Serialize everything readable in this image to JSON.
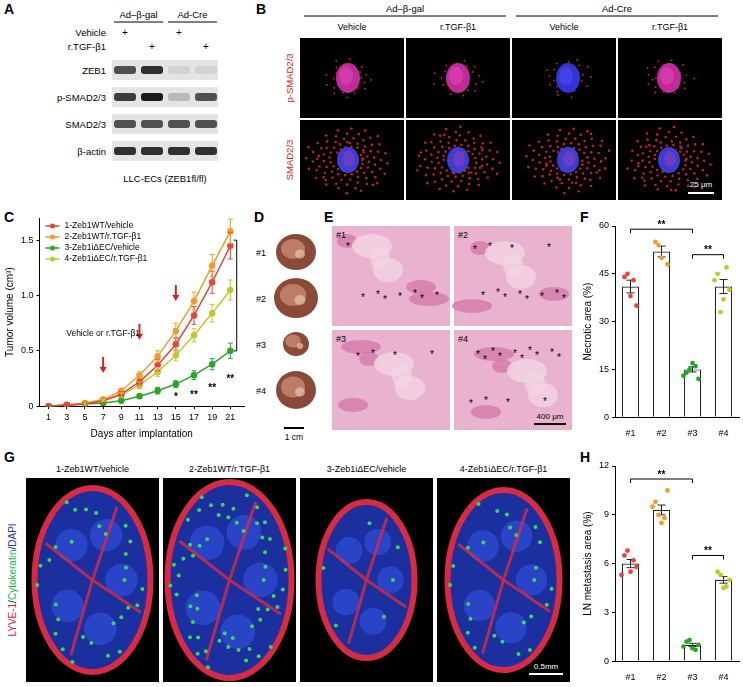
{
  "panel_A": {
    "label": "A",
    "groups": [
      "Ad–β-gal",
      "Ad-Cre"
    ],
    "treatments": [
      {
        "text": "Vehicle",
        "marks": [
          "+",
          null,
          "+",
          null
        ]
      },
      {
        "text": "r.TGF-β1",
        "marks": [
          null,
          "+",
          null,
          "+"
        ]
      }
    ],
    "bands": [
      {
        "text": "ZEB1",
        "intensity": [
          0.7,
          0.85,
          0.08,
          0.08
        ]
      },
      {
        "text": "p-SMAD2/3",
        "intensity": [
          0.8,
          0.95,
          0.2,
          0.7
        ]
      },
      {
        "text": "SMAD2/3",
        "intensity": [
          0.7,
          0.7,
          0.7,
          0.7
        ]
      },
      {
        "text": "β-actin",
        "intensity": [
          0.85,
          0.85,
          0.85,
          0.85
        ]
      }
    ],
    "caption": "LLC-ECs (ZEB1fl/fl)"
  },
  "panel_B": {
    "label": "B",
    "groups": [
      "Ad–β-gal",
      "Ad-Cre"
    ],
    "columns": [
      "Vehicle",
      "r.TGF-β1",
      "Vehicle",
      "r.TGF-β1"
    ],
    "rows": [
      "p-SMAD2/3",
      "SMAD2/3"
    ],
    "scale_bar": "25 μm"
  },
  "panel_D": {
    "label": "D",
    "items": [
      "#1",
      "#2",
      "#3",
      "#4"
    ],
    "scale_bar": "1 cm"
  },
  "panel_E": {
    "label": "E",
    "asterisk": "*",
    "tiles": [
      {
        "text": "#1",
        "asterisks": 8
      },
      {
        "text": "#2",
        "asterisks": 12
      },
      {
        "text": "#3",
        "asterisks": 4
      },
      {
        "text": "#4",
        "asterisks": 14
      }
    ],
    "scale_bar": "400 μm"
  },
  "panel_G": {
    "label": "G",
    "stains": [
      {
        "text": "LYVE-1",
        "color": "#e0203a"
      },
      {
        "text": "Cytokeratin",
        "color": "#22b14c"
      },
      {
        "text": "DAPI",
        "color": "#2233cc"
      }
    ],
    "separator": "/",
    "tiles": [
      "1-Zeb1WT/vehicle",
      "2-Zeb1WT/r.TGF-β1",
      "3-Zeb1iΔEC/vehicle",
      "4-Zeb1iΔEC/r.TGF-β1"
    ],
    "scale_bar": "0.5mm"
  },
  "chart_data": [
    {
      "label": "C",
      "type": "line",
      "x_label": "Days after implantation",
      "y_label": "Tumor volume (cm³)",
      "x": [
        1,
        3,
        5,
        7,
        9,
        11,
        13,
        15,
        17,
        19,
        21
      ],
      "xlim": [
        0,
        22.5
      ],
      "xticks": [
        1,
        3,
        5,
        7,
        9,
        11,
        13,
        15,
        17,
        19,
        21
      ],
      "ylim": [
        0,
        1.7
      ],
      "yticks": [
        0,
        0.5,
        {
          "value": 1,
          "label": "1.0"
        },
        1.5
      ],
      "grid": false,
      "legend": "top-left",
      "marker": "circle",
      "series": [
        {
          "name": "1-Zeb1WT/vehicle",
          "color": "#e8433a",
          "values": [
            0,
            0.01,
            0.02,
            0.05,
            0.11,
            0.22,
            0.37,
            0.56,
            0.82,
            1.12,
            1.45
          ],
          "errors": [
            0,
            0,
            0.01,
            0.01,
            0.02,
            0.03,
            0.05,
            0.06,
            0.08,
            0.1,
            0.12
          ]
        },
        {
          "name": "2-Zeb1WT/r.TGF-β1",
          "color": "#f39c2b",
          "values": [
            0,
            0.01,
            0.03,
            0.06,
            0.14,
            0.28,
            0.45,
            0.68,
            0.95,
            1.27,
            1.58
          ],
          "errors": [
            0,
            0,
            0.01,
            0.01,
            0.02,
            0.03,
            0.05,
            0.07,
            0.08,
            0.1,
            0.11
          ]
        },
        {
          "name": "3-Zeb1iΔEC/vehicle",
          "color": "#2aa52a",
          "values": [
            0,
            0.01,
            0.02,
            0.03,
            0.05,
            0.09,
            0.14,
            0.2,
            0.28,
            0.38,
            0.5
          ],
          "errors": [
            0,
            0,
            0.01,
            0.01,
            0.01,
            0.02,
            0.03,
            0.03,
            0.04,
            0.05,
            0.07
          ]
        },
        {
          "name": "4-Zeb1iΔEC/r.TGF-β1",
          "color": "#c2c72c",
          "values": [
            0,
            0.01,
            0.02,
            0.05,
            0.1,
            0.19,
            0.31,
            0.46,
            0.64,
            0.84,
            1.05
          ],
          "errors": [
            0,
            0,
            0.01,
            0.01,
            0.02,
            0.03,
            0.04,
            0.05,
            0.06,
            0.08,
            0.09
          ]
        }
      ],
      "treatment": {
        "text": "Vehicle or r.TGF-β1",
        "x": 7,
        "y": 0.62
      },
      "arrows": {
        "color": "#e02020",
        "x": [
          7,
          11,
          15
        ],
        "y": [
          0.3,
          0.6,
          0.95
        ]
      },
      "annotations": [
        {
          "text": "*",
          "x": 15,
          "y": 0.08
        },
        {
          "text": "**",
          "x": 17,
          "y": 0.1
        },
        {
          "text": "**",
          "x": 19,
          "y": 0.16
        },
        {
          "text": "**",
          "x": 21,
          "y": 0.24
        }
      ],
      "bracket": {
        "x": 21.7,
        "from": 0.5,
        "to": 1.5
      }
    },
    {
      "label": "F",
      "type": "bar",
      "y_label": "Necrotic area (%)",
      "categories": [
        "#1",
        "#2",
        "#3",
        "#4"
      ],
      "values": [
        41,
        52,
        15,
        41
      ],
      "errors": [
        2,
        1.7,
        0.8,
        2.2
      ],
      "points": [
        [
          44,
          38,
          35,
          45,
          43
        ],
        [
          55,
          50,
          48,
          54
        ],
        [
          14,
          17,
          12,
          15,
          16,
          13
        ],
        [
          45,
          37,
          40,
          33,
          47,
          43
        ]
      ],
      "colors": [
        "#e8433a",
        "#f39c2b",
        "#2aa52a",
        "#c2c72c"
      ],
      "color": "#222222",
      "ylim": [
        0,
        60
      ],
      "yticks": [
        0,
        15,
        30,
        45,
        60
      ],
      "grid": false,
      "significance": [
        {
          "from": "#1",
          "to": "#3",
          "y": 59,
          "label": "**"
        },
        {
          "from": "#3",
          "to": "#4",
          "y": 51,
          "label": "**"
        }
      ]
    },
    {
      "label": "H",
      "type": "bar",
      "y_label": "LN metastasis area (%)",
      "categories": [
        "#1",
        "#2",
        "#3",
        "#4"
      ],
      "values": [
        6.0,
        9.3,
        1.0,
        5.0
      ],
      "errors": [
        0.25,
        0.3,
        0.1,
        0.2
      ],
      "points": [
        [
          6.5,
          5.5,
          5.8,
          6.8,
          6.2,
          5.3
        ],
        [
          9.8,
          8.5,
          10.5,
          9.0,
          8.8,
          9.5
        ],
        [
          1.2,
          0.8,
          1.0,
          1.3,
          0.7,
          0.9
        ],
        [
          5.5,
          4.5,
          5.0,
          5.3,
          4.6
        ]
      ],
      "colors": [
        "#e8433a",
        "#f39c2b",
        "#2aa52a",
        "#c2c72c"
      ],
      "color": "#222222",
      "ylim": [
        0,
        12
      ],
      "yticks": [
        0,
        3,
        6,
        9,
        12
      ],
      "grid": false,
      "significance": [
        {
          "from": "#1",
          "to": "#3",
          "y": 11.2,
          "label": "**"
        },
        {
          "from": "#3",
          "to": "#4",
          "y": 6.5,
          "label": "**"
        }
      ]
    }
  ]
}
